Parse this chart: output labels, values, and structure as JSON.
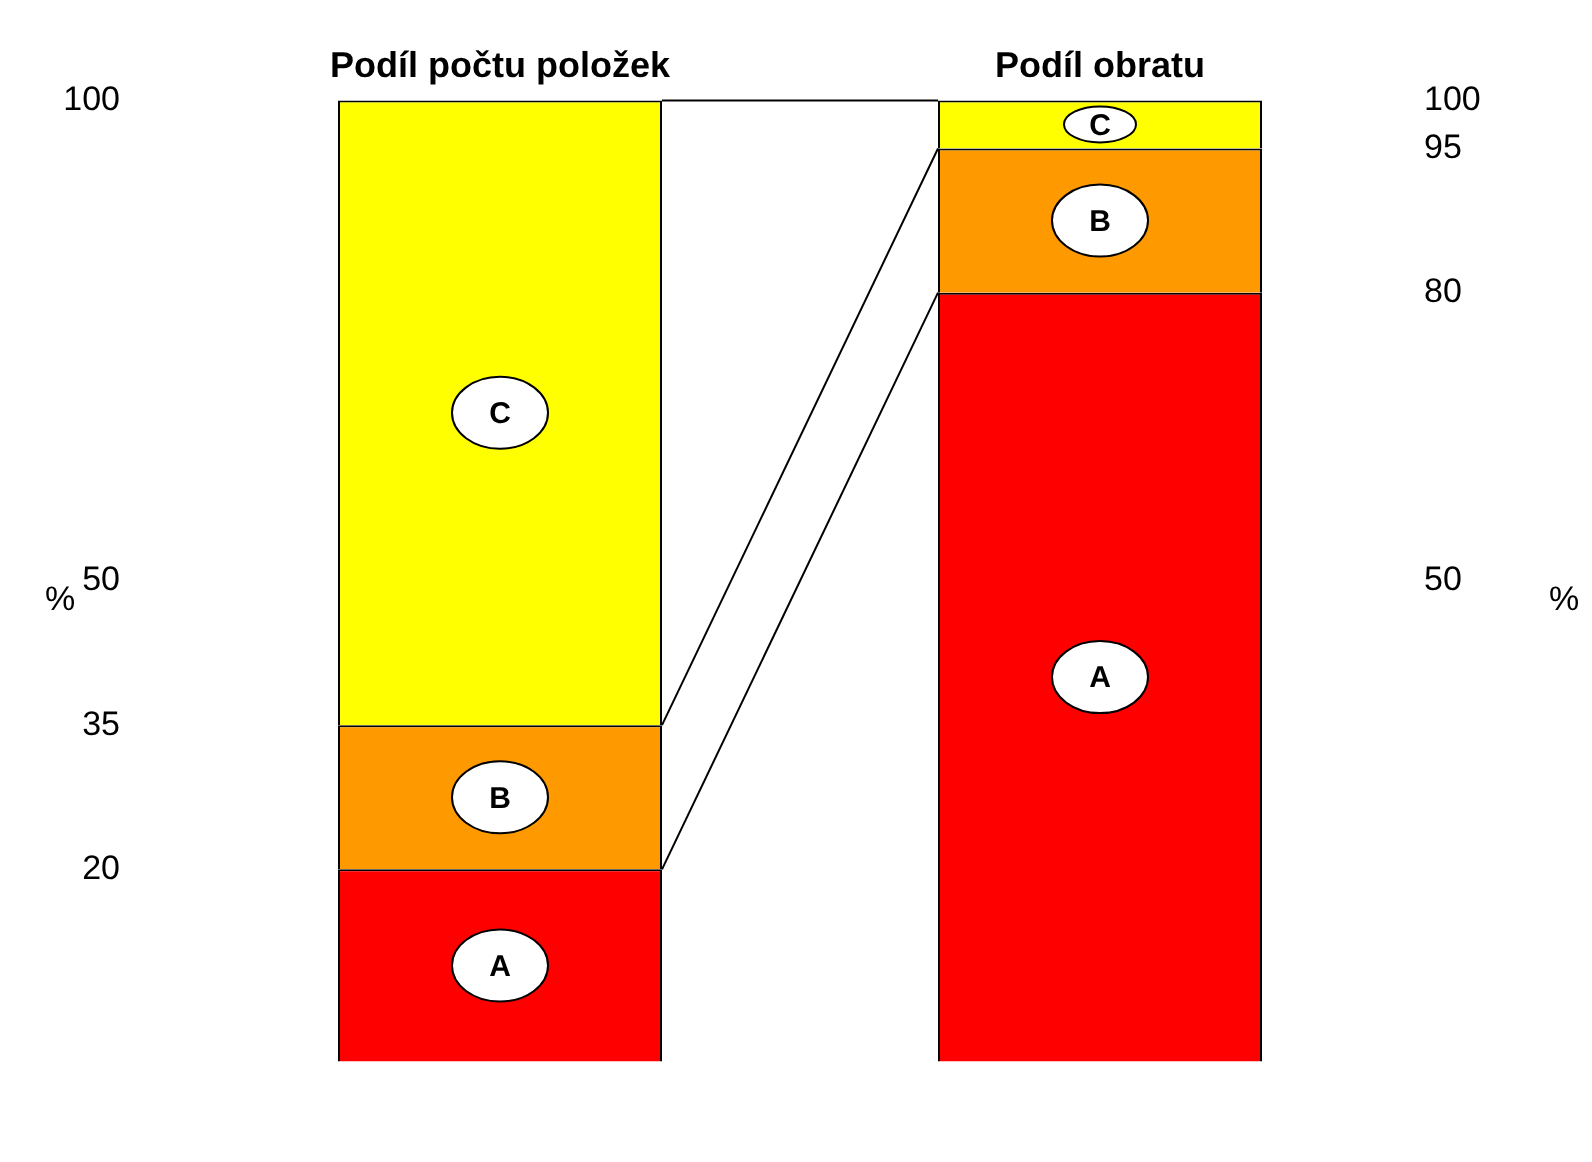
{
  "chart_data": {
    "type": "bar",
    "stacked": true,
    "categories": [
      "Podíl počtu položek",
      "Podíl obratu"
    ],
    "series": [
      {
        "name": "A",
        "color": "#ff0000",
        "values": [
          20,
          80
        ]
      },
      {
        "name": "B",
        "color": "#ff9900",
        "values": [
          15,
          15
        ]
      },
      {
        "name": "C",
        "color": "#ffff00",
        "values": [
          65,
          5
        ]
      }
    ],
    "ylabel": "%",
    "y2label": "%",
    "ylim": [
      0,
      100
    ],
    "yticks": [
      20,
      35,
      50,
      100
    ],
    "y2lim": [
      0,
      100
    ],
    "y2ticks": [
      50,
      80,
      95,
      100
    ],
    "grid": false,
    "legend": false
  }
}
